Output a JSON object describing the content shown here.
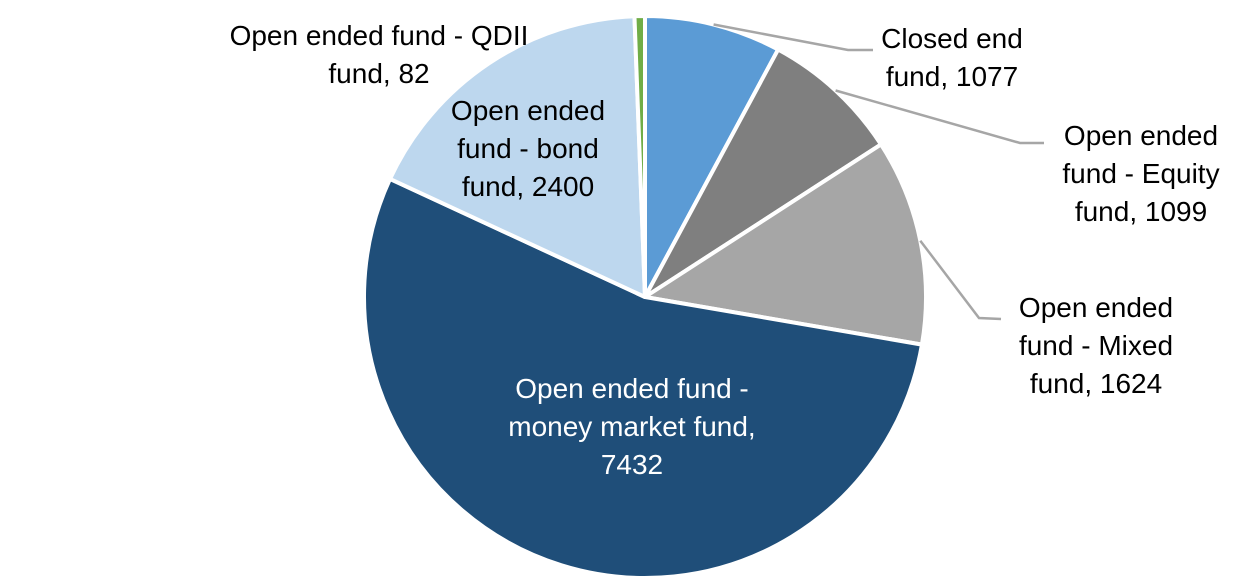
{
  "chart_data": {
    "type": "pie",
    "title": "",
    "legend": "none",
    "background": "#FFFFFF",
    "start_angle_deg": 0,
    "direction": "clockwise",
    "label_format": "name, value",
    "leader_line_color": "#A6A6A6",
    "slices": [
      {
        "label": "Closed end fund",
        "value": 1077,
        "color": "#5B9BD5",
        "label_placement": "outside-right",
        "lines": [
          "Closed end",
          "fund, 1077"
        ]
      },
      {
        "label": "Open ended fund - Equity fund",
        "value": 1099,
        "color": "#7F7F7F",
        "label_placement": "outside-right",
        "lines": [
          "Open ended",
          "fund - Equity",
          "fund, 1099"
        ]
      },
      {
        "label": "Open ended fund - Mixed fund",
        "value": 1624,
        "color": "#A6A6A6",
        "label_placement": "outside-right",
        "lines": [
          "Open ended",
          "fund - Mixed",
          "fund, 1624"
        ]
      },
      {
        "label": "Open ended fund - money market fund",
        "value": 7432,
        "color": "#1F4E79",
        "label_placement": "inside",
        "label_text_color": "#FFFFFF",
        "lines": [
          "Open ended fund -",
          "money market fund,",
          "7432"
        ]
      },
      {
        "label": "Open ended fund - bond fund",
        "value": 2400,
        "color": "#BDD7EE",
        "label_placement": "inside",
        "lines": [
          "Open ended",
          "fund - bond",
          "fund, 2400"
        ]
      },
      {
        "label": "Open ended fund - QDII fund",
        "value": 82,
        "color": "#70AD47",
        "label_placement": "outside-top-left",
        "lines": [
          "Open ended fund - QDII",
          "fund, 82"
        ]
      }
    ]
  }
}
